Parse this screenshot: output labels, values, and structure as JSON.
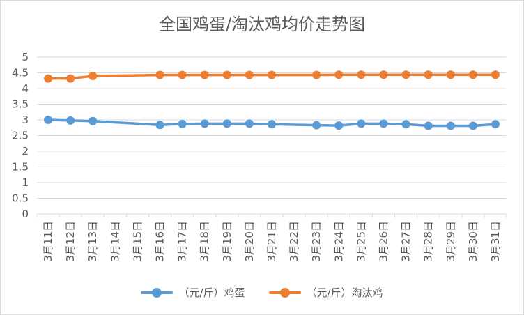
{
  "chart_data": {
    "type": "line",
    "title": "全国鸡蛋/淘汰鸡均价走势图",
    "categories": [
      "3月11日",
      "3月12日",
      "3月13日",
      "3月14日",
      "3月15日",
      "3月16日",
      "3月17日",
      "3月18日",
      "3月19日",
      "3月20日",
      "3月21日",
      "3月22日",
      "3月23日",
      "3月24日",
      "3月25日",
      "3月26日",
      "3月27日",
      "3月28日",
      "3月29日",
      "3月30日",
      "3月31日"
    ],
    "y_ticks": [
      "0",
      "0.5",
      "1",
      "1.5",
      "2",
      "2.5",
      "3",
      "3.5",
      "4",
      "4.5",
      "5"
    ],
    "ylim": [
      0,
      5
    ],
    "grid": true,
    "legend_position": "bottom",
    "series": [
      {
        "name": "（元/斤）鸡蛋",
        "color": "#5b9bd5",
        "values": [
          3.0,
          2.98,
          2.96,
          null,
          null,
          2.84,
          2.87,
          2.88,
          2.88,
          2.88,
          2.86,
          null,
          2.83,
          2.82,
          2.88,
          2.88,
          2.86,
          2.81,
          2.81,
          2.81,
          2.86
        ]
      },
      {
        "name": "（元/斤）淘汰鸡",
        "color": "#ed7d31",
        "values": [
          4.32,
          4.32,
          4.4,
          null,
          null,
          4.43,
          4.43,
          4.43,
          4.43,
          4.43,
          4.43,
          null,
          4.43,
          4.44,
          4.44,
          4.44,
          4.44,
          4.44,
          4.44,
          4.44,
          4.44
        ]
      }
    ]
  }
}
